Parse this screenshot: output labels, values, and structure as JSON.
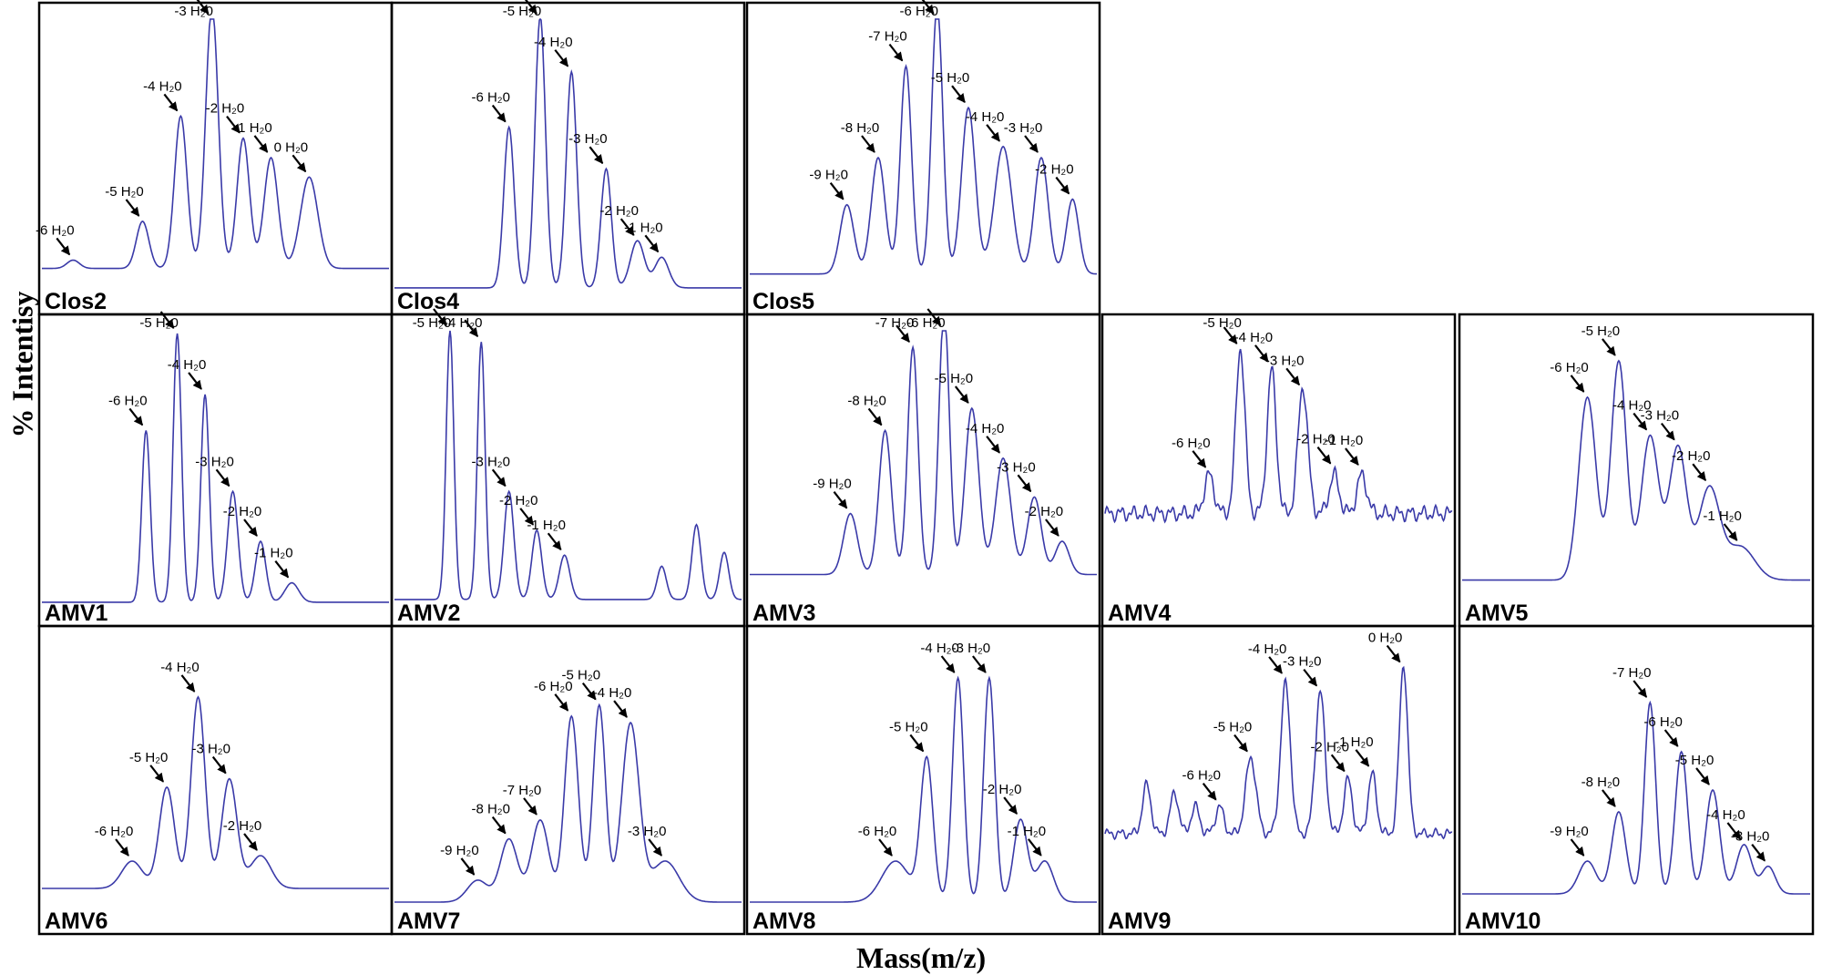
{
  "y_axis_label": "% Intentisy",
  "x_axis_label": "Mass(m/z)",
  "line_color": "#3a3aa8",
  "chart_data": {
    "type": "line",
    "panels": [
      {
        "name": "Clos2",
        "row": 0,
        "col": 0,
        "baseline": 0.1,
        "noise": 0.0,
        "peaks": [
          [
            0.09,
            0.03,
            0.018
          ],
          [
            0.29,
            0.17,
            0.018
          ],
          [
            0.4,
            0.55,
            0.018
          ],
          [
            0.49,
            0.95,
            0.018
          ],
          [
            0.58,
            0.47,
            0.018
          ],
          [
            0.66,
            0.4,
            0.02
          ],
          [
            0.77,
            0.33,
            0.025
          ]
        ],
        "labels": [
          {
            "t": "-6 H₂0",
            "p": 0
          },
          {
            "t": "-5 H₂0",
            "p": 1
          },
          {
            "t": "-4 H₂0",
            "p": 2
          },
          {
            "t": "-3 H₂0",
            "p": 3
          },
          {
            "t": "-2 H₂0",
            "p": 4
          },
          {
            "t": "-1 H₂0",
            "p": 5
          },
          {
            "t": "0 H₂0",
            "p": 6
          }
        ]
      },
      {
        "name": "Clos4",
        "row": 0,
        "col": 1,
        "baseline": 0.03,
        "noise": 0.0,
        "peaks": [
          [
            0.33,
            0.58,
            0.015
          ],
          [
            0.42,
            0.98,
            0.015
          ],
          [
            0.51,
            0.78,
            0.015
          ],
          [
            0.61,
            0.43,
            0.015
          ],
          [
            0.7,
            0.17,
            0.02
          ],
          [
            0.77,
            0.11,
            0.02
          ]
        ],
        "labels": [
          {
            "t": "-6 H₂0",
            "p": 0
          },
          {
            "t": "-5 H₂0",
            "p": 1
          },
          {
            "t": "-4 H₂0",
            "p": 2
          },
          {
            "t": "-3 H₂0",
            "p": 3
          },
          {
            "t": "-2 H₂0",
            "p": 4
          },
          {
            "t": "-1 H₂0",
            "p": 5
          }
        ]
      },
      {
        "name": "Clos5",
        "row": 0,
        "col": 2,
        "baseline": 0.08,
        "noise": 0.0,
        "peaks": [
          [
            0.28,
            0.25,
            0.02
          ],
          [
            0.37,
            0.42,
            0.02
          ],
          [
            0.45,
            0.75,
            0.016
          ],
          [
            0.54,
            0.97,
            0.016
          ],
          [
            0.63,
            0.6,
            0.02
          ],
          [
            0.73,
            0.46,
            0.025
          ],
          [
            0.84,
            0.42,
            0.02
          ],
          [
            0.93,
            0.27,
            0.018
          ]
        ],
        "labels": [
          {
            "t": "-9 H₂0",
            "p": 0
          },
          {
            "t": "-8 H₂0",
            "p": 1
          },
          {
            "t": "-7 H₂0",
            "p": 2
          },
          {
            "t": "-6 H₂0",
            "p": 3
          },
          {
            "t": "-5 H₂0",
            "p": 4
          },
          {
            "t": "-4 H₂0",
            "p": 5
          },
          {
            "t": "-3 H₂0",
            "p": 6
          },
          {
            "t": "-2 H₂0",
            "p": 7
          }
        ]
      },
      {
        "name": "AMV1",
        "row": 1,
        "col": 0,
        "baseline": 0.02,
        "noise": 0.0,
        "peaks": [
          [
            0.3,
            0.62,
            0.012
          ],
          [
            0.39,
            0.97,
            0.012
          ],
          [
            0.47,
            0.75,
            0.012
          ],
          [
            0.55,
            0.4,
            0.015
          ],
          [
            0.63,
            0.22,
            0.015
          ],
          [
            0.72,
            0.07,
            0.02
          ]
        ],
        "labels": [
          {
            "t": "-6 H₂0",
            "p": 0
          },
          {
            "t": "-5 H₂0",
            "p": 1
          },
          {
            "t": "-4 H₂0",
            "p": 2
          },
          {
            "t": "-3 H₂0",
            "p": 3
          },
          {
            "t": "-2 H₂0",
            "p": 4
          },
          {
            "t": "-1 H₂0",
            "p": 5
          }
        ]
      },
      {
        "name": "AMV2",
        "row": 1,
        "col": 1,
        "baseline": 0.03,
        "noise": 0.0,
        "peaks": [
          [
            0.16,
            0.97,
            0.011
          ],
          [
            0.25,
            0.93,
            0.011
          ],
          [
            0.33,
            0.39,
            0.014
          ],
          [
            0.41,
            0.25,
            0.014
          ],
          [
            0.49,
            0.16,
            0.015
          ],
          [
            0.77,
            0.12,
            0.013
          ],
          [
            0.87,
            0.27,
            0.013
          ],
          [
            0.95,
            0.17,
            0.013
          ]
        ],
        "labels": [
          {
            "t": "-5 H₂0",
            "p": 0
          },
          {
            "t": "-4 H₂0",
            "p": 1
          },
          {
            "t": "-3 H₂0",
            "p": 2
          },
          {
            "t": "-2 H₂0",
            "p": 3
          },
          {
            "t": "-1 H₂0",
            "p": 4
          }
        ]
      },
      {
        "name": "AMV3",
        "row": 1,
        "col": 2,
        "baseline": 0.12,
        "noise": 0.0,
        "peaks": [
          [
            0.29,
            0.22,
            0.02
          ],
          [
            0.39,
            0.52,
            0.018
          ],
          [
            0.47,
            0.82,
            0.015
          ],
          [
            0.56,
            0.96,
            0.015
          ],
          [
            0.64,
            0.6,
            0.02
          ],
          [
            0.73,
            0.42,
            0.022
          ],
          [
            0.82,
            0.28,
            0.02
          ],
          [
            0.9,
            0.12,
            0.02
          ]
        ],
        "labels": [
          {
            "t": "-9 H₂0",
            "p": 0
          },
          {
            "t": "-8 H₂0",
            "p": 1
          },
          {
            "t": "-7 H₂0",
            "p": 2
          },
          {
            "t": "-6 H₂0",
            "p": 3
          },
          {
            "t": "-5 H₂0",
            "p": 4
          },
          {
            "t": "-4 H₂0",
            "p": 5
          },
          {
            "t": "-3 H₂0",
            "p": 6
          },
          {
            "t": "-2 H₂0",
            "p": 7
          }
        ]
      },
      {
        "name": "AMV4",
        "row": 1,
        "col": 3,
        "baseline": 0.34,
        "noise": 0.03,
        "peaks": [
          [
            0.3,
            0.14,
            0.014
          ],
          [
            0.39,
            0.6,
            0.013
          ],
          [
            0.48,
            0.52,
            0.013
          ],
          [
            0.57,
            0.46,
            0.014
          ],
          [
            0.66,
            0.14,
            0.014
          ],
          [
            0.74,
            0.14,
            0.014
          ]
        ],
        "labels": [
          {
            "t": "-6 H₂0",
            "p": 0
          },
          {
            "t": "-5 H₂0",
            "p": 1
          },
          {
            "t": "-4 H₂0",
            "p": 2
          },
          {
            "t": "-3 H₂0",
            "p": 3
          },
          {
            "t": "-2 H₂0",
            "p": 4
          },
          {
            "t": "-1 H₂0",
            "p": 5
          }
        ]
      },
      {
        "name": "AMV5",
        "row": 1,
        "col": 4,
        "baseline": 0.1,
        "noise": 0.0,
        "peaks": [
          [
            0.36,
            0.66,
            0.025
          ],
          [
            0.45,
            0.79,
            0.022
          ],
          [
            0.54,
            0.52,
            0.025
          ],
          [
            0.62,
            0.48,
            0.025
          ],
          [
            0.71,
            0.33,
            0.03
          ],
          [
            0.8,
            0.12,
            0.04
          ]
        ],
        "labels": [
          {
            "t": "-6 H₂0",
            "p": 0
          },
          {
            "t": "-5 H₂0",
            "p": 1
          },
          {
            "t": "-4 H₂0",
            "p": 2
          },
          {
            "t": "-3 H₂0",
            "p": 3
          },
          {
            "t": "-2 H₂0",
            "p": 4
          },
          {
            "t": "-1 H₂0",
            "p": 5
          }
        ]
      },
      {
        "name": "AMV6",
        "row": 2,
        "col": 0,
        "baseline": 0.1,
        "noise": 0.0,
        "peaks": [
          [
            0.26,
            0.1,
            0.03
          ],
          [
            0.36,
            0.37,
            0.022
          ],
          [
            0.45,
            0.7,
            0.02
          ],
          [
            0.54,
            0.4,
            0.022
          ],
          [
            0.63,
            0.12,
            0.03
          ]
        ],
        "labels": [
          {
            "t": "-6 H₂0",
            "p": 0
          },
          {
            "t": "-5 H₂0",
            "p": 1
          },
          {
            "t": "-4 H₂0",
            "p": 2
          },
          {
            "t": "-3 H₂0",
            "p": 3
          },
          {
            "t": "-2 H₂0",
            "p": 4
          }
        ]
      },
      {
        "name": "AMV7",
        "row": 2,
        "col": 1,
        "baseline": 0.05,
        "noise": 0.0,
        "peaks": [
          [
            0.24,
            0.08,
            0.03
          ],
          [
            0.33,
            0.23,
            0.025
          ],
          [
            0.42,
            0.3,
            0.025
          ],
          [
            0.51,
            0.68,
            0.02
          ],
          [
            0.59,
            0.72,
            0.018
          ],
          [
            0.68,
            0.65,
            0.025
          ],
          [
            0.78,
            0.15,
            0.04
          ]
        ],
        "labels": [
          {
            "t": "-9 H₂0",
            "p": 0
          },
          {
            "t": "-8 H₂0",
            "p": 1
          },
          {
            "t": "-7 H₂0",
            "p": 2
          },
          {
            "t": "-6 H₂0",
            "p": 3
          },
          {
            "t": "-5 H₂0",
            "p": 4
          },
          {
            "t": "-4 H₂0",
            "p": 5
          },
          {
            "t": "-3 H₂0",
            "p": 6
          }
        ]
      },
      {
        "name": "AMV8",
        "row": 2,
        "col": 2,
        "baseline": 0.05,
        "noise": 0.0,
        "peaks": [
          [
            0.42,
            0.15,
            0.04
          ],
          [
            0.51,
            0.52,
            0.018
          ],
          [
            0.6,
            0.82,
            0.016
          ],
          [
            0.69,
            0.82,
            0.016
          ],
          [
            0.78,
            0.3,
            0.02
          ],
          [
            0.85,
            0.15,
            0.025
          ]
        ],
        "labels": [
          {
            "t": "-6 H₂0",
            "p": 0
          },
          {
            "t": "-5 H₂0",
            "p": 1
          },
          {
            "t": "-4 H₂0",
            "p": 2
          },
          {
            "t": "-3 H₂0",
            "p": 3
          },
          {
            "t": "-2 H₂0",
            "p": 4
          },
          {
            "t": "-1 H₂0",
            "p": 5
          }
        ]
      },
      {
        "name": "AMV9",
        "row": 2,
        "col": 3,
        "baseline": 0.3,
        "noise": 0.02,
        "peaks": [
          [
            0.12,
            0.18,
            0.012
          ],
          [
            0.2,
            0.15,
            0.012
          ],
          [
            0.26,
            0.1,
            0.012
          ],
          [
            0.33,
            0.1,
            0.012
          ],
          [
            0.42,
            0.28,
            0.015
          ],
          [
            0.52,
            0.55,
            0.014
          ],
          [
            0.62,
            0.52,
            0.014
          ],
          [
            0.7,
            0.2,
            0.012
          ],
          [
            0.77,
            0.22,
            0.012
          ],
          [
            0.86,
            0.62,
            0.012
          ]
        ],
        "labels": [
          {
            "t": "-6 H₂0",
            "p": 3
          },
          {
            "t": "-5 H₂0",
            "p": 4
          },
          {
            "t": "-4 H₂0",
            "p": 5
          },
          {
            "t": "-3 H₂0",
            "p": 6
          },
          {
            "t": "-2 H₂0",
            "p": 7
          },
          {
            "t": "-1 H₂0",
            "p": 8
          },
          {
            "t": "0 H₂0",
            "p": 9
          }
        ]
      },
      {
        "name": "AMV10",
        "row": 2,
        "col": 4,
        "baseline": 0.08,
        "noise": 0.0,
        "peaks": [
          [
            0.36,
            0.12,
            0.025
          ],
          [
            0.45,
            0.3,
            0.02
          ],
          [
            0.54,
            0.7,
            0.016
          ],
          [
            0.63,
            0.52,
            0.018
          ],
          [
            0.72,
            0.38,
            0.02
          ],
          [
            0.81,
            0.18,
            0.022
          ],
          [
            0.88,
            0.1,
            0.02
          ]
        ],
        "labels": [
          {
            "t": "-9 H₂0",
            "p": 0
          },
          {
            "t": "-8 H₂0",
            "p": 1
          },
          {
            "t": "-7 H₂0",
            "p": 2
          },
          {
            "t": "-6 H₂0",
            "p": 3
          },
          {
            "t": "-5 H₂0",
            "p": 4
          },
          {
            "t": "-4 H₂0",
            "p": 5
          },
          {
            "t": "-3 H₂0",
            "p": 6
          }
        ]
      }
    ]
  }
}
